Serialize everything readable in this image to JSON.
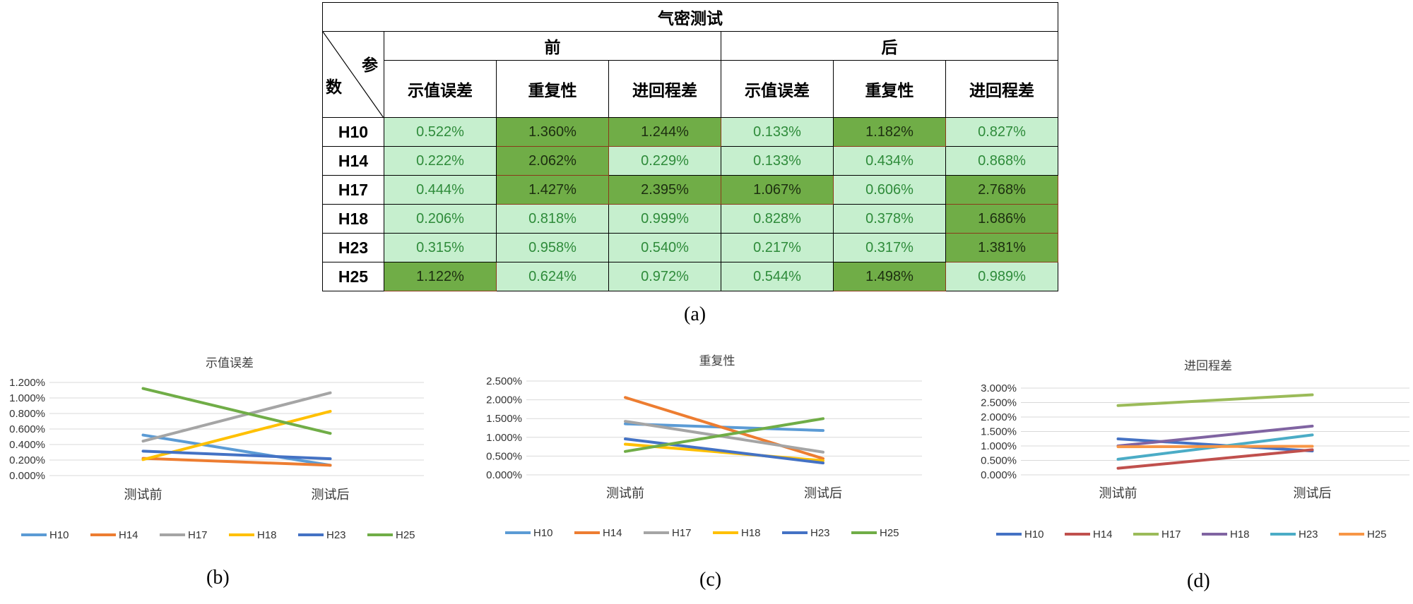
{
  "table": {
    "title": "气密测试",
    "corner_top": "参",
    "corner_bottom": "数",
    "groups": [
      "前",
      "后"
    ],
    "subheaders": [
      "示值误差",
      "重复性",
      "进回程差",
      "示值误差",
      "重复性",
      "进回程差"
    ],
    "rows": [
      {
        "name": "H10",
        "values": [
          "0.522%",
          "1.360%",
          "1.244%",
          "0.133%",
          "1.182%",
          "0.827%"
        ],
        "highlight": [
          false,
          true,
          true,
          false,
          true,
          false
        ]
      },
      {
        "name": "H14",
        "values": [
          "0.222%",
          "2.062%",
          "0.229%",
          "0.133%",
          "0.434%",
          "0.868%"
        ],
        "highlight": [
          false,
          true,
          false,
          false,
          false,
          false
        ]
      },
      {
        "name": "H17",
        "values": [
          "0.444%",
          "1.427%",
          "2.395%",
          "1.067%",
          "0.606%",
          "2.768%"
        ],
        "highlight": [
          false,
          true,
          true,
          true,
          false,
          true
        ]
      },
      {
        "name": "H18",
        "values": [
          "0.206%",
          "0.818%",
          "0.999%",
          "0.828%",
          "0.378%",
          "1.686%"
        ],
        "highlight": [
          false,
          false,
          false,
          false,
          false,
          true
        ]
      },
      {
        "name": "H23",
        "values": [
          "0.315%",
          "0.958%",
          "0.540%",
          "0.217%",
          "0.317%",
          "1.381%"
        ],
        "highlight": [
          false,
          false,
          false,
          false,
          false,
          true
        ]
      },
      {
        "name": "H25",
        "values": [
          "1.122%",
          "0.624%",
          "0.972%",
          "0.544%",
          "1.498%",
          "0.989%"
        ],
        "highlight": [
          true,
          false,
          false,
          false,
          true,
          false
        ]
      }
    ],
    "colors": {
      "light_fill": "#c6efce",
      "light_text": "#2e8b3a",
      "dark_fill": "#70ad47",
      "dark_text": "#1c2e10"
    }
  },
  "captions": {
    "a": "(a)",
    "b": "(b)",
    "c": "(c)",
    "d": "(d)"
  },
  "chart_data": [
    {
      "type": "line",
      "title": "示值误差",
      "categories": [
        "测试前",
        "测试后"
      ],
      "ylim": [
        0,
        1.2
      ],
      "yticks": [
        0,
        0.2,
        0.4,
        0.6,
        0.8,
        1.0,
        1.2
      ],
      "tick_labels": [
        "0.000%",
        "0.200%",
        "0.400%",
        "0.600%",
        "0.800%",
        "1.000%",
        "1.200%"
      ],
      "grid": true,
      "legend": "bottom",
      "series": [
        {
          "name": "H10",
          "values": [
            0.522,
            0.133
          ],
          "color": "#5b9bd5"
        },
        {
          "name": "H14",
          "values": [
            0.222,
            0.133
          ],
          "color": "#ed7d31"
        },
        {
          "name": "H17",
          "values": [
            0.444,
            1.067
          ],
          "color": "#a5a5a5"
        },
        {
          "name": "H18",
          "values": [
            0.206,
            0.828
          ],
          "color": "#ffc000"
        },
        {
          "name": "H23",
          "values": [
            0.315,
            0.217
          ],
          "color": "#4472c4"
        },
        {
          "name": "H25",
          "values": [
            1.122,
            0.544
          ],
          "color": "#70ad47"
        }
      ]
    },
    {
      "type": "line",
      "title": "重复性",
      "categories": [
        "测试前",
        "测试后"
      ],
      "ylim": [
        0,
        2.5
      ],
      "yticks": [
        0,
        0.5,
        1.0,
        1.5,
        2.0,
        2.5
      ],
      "tick_labels": [
        "0.000%",
        "0.500%",
        "1.000%",
        "1.500%",
        "2.000%",
        "2.500%"
      ],
      "grid": true,
      "legend": "bottom",
      "series": [
        {
          "name": "H10",
          "values": [
            1.36,
            1.182
          ],
          "color": "#5b9bd5"
        },
        {
          "name": "H14",
          "values": [
            2.062,
            0.434
          ],
          "color": "#ed7d31"
        },
        {
          "name": "H17",
          "values": [
            1.427,
            0.606
          ],
          "color": "#a5a5a5"
        },
        {
          "name": "H18",
          "values": [
            0.818,
            0.378
          ],
          "color": "#ffc000"
        },
        {
          "name": "H23",
          "values": [
            0.958,
            0.317
          ],
          "color": "#4472c4"
        },
        {
          "name": "H25",
          "values": [
            0.624,
            1.498
          ],
          "color": "#70ad47"
        }
      ]
    },
    {
      "type": "line",
      "title": "进回程差",
      "categories": [
        "测试前",
        "测试后"
      ],
      "ylim": [
        0,
        3.0
      ],
      "yticks": [
        0,
        0.5,
        1.0,
        1.5,
        2.0,
        2.5,
        3.0
      ],
      "tick_labels": [
        "0.000%",
        "0.500%",
        "1.000%",
        "1.500%",
        "2.000%",
        "2.500%",
        "3.000%"
      ],
      "grid": true,
      "legend": "bottom",
      "series": [
        {
          "name": "H10",
          "values": [
            1.244,
            0.827
          ],
          "color": "#4472c4"
        },
        {
          "name": "H14",
          "values": [
            0.229,
            0.868
          ],
          "color": "#c0504d"
        },
        {
          "name": "H17",
          "values": [
            2.395,
            2.768
          ],
          "color": "#9bbb59"
        },
        {
          "name": "H18",
          "values": [
            0.999,
            1.686
          ],
          "color": "#8064a2"
        },
        {
          "name": "H23",
          "values": [
            0.54,
            1.381
          ],
          "color": "#4bacc6"
        },
        {
          "name": "H25",
          "values": [
            0.972,
            0.989
          ],
          "color": "#f79646"
        }
      ]
    }
  ]
}
